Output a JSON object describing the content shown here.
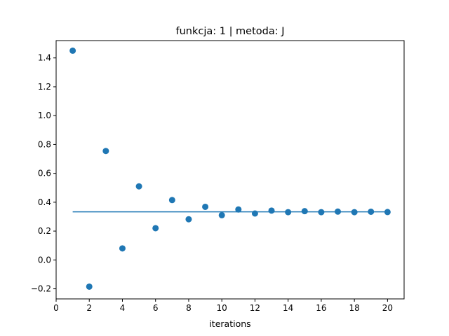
{
  "chart_data": {
    "type": "scatter",
    "title": "funkcja: 1 | metoda: J",
    "xlabel": "iterations",
    "ylabel": "",
    "xlim": [
      0,
      21
    ],
    "ylim": [
      -0.27,
      1.52
    ],
    "xticks": [
      0,
      2,
      4,
      6,
      8,
      10,
      12,
      14,
      16,
      18,
      20
    ],
    "yticks": [
      -0.2,
      0.0,
      0.2,
      0.4,
      0.6,
      0.8,
      1.0,
      1.2,
      1.4
    ],
    "ytick_labels": [
      "−0.2",
      "0.0",
      "0.2",
      "0.4",
      "0.6",
      "0.8",
      "1.0",
      "1.2",
      "1.4"
    ],
    "grid": false,
    "series": [
      {
        "kind": "scatter",
        "color": "#1f77b4",
        "x": [
          1,
          2,
          3,
          4,
          5,
          6,
          7,
          8,
          9,
          10,
          11,
          12,
          13,
          14,
          15,
          16,
          17,
          18,
          19,
          20
        ],
        "y": [
          1.45,
          -0.185,
          0.755,
          0.08,
          0.51,
          0.22,
          0.415,
          0.282,
          0.368,
          0.31,
          0.35,
          0.322,
          0.342,
          0.331,
          0.338,
          0.331,
          0.335,
          0.331,
          0.334,
          0.332
        ]
      },
      {
        "kind": "line",
        "color": "#1f77b4",
        "x": [
          1,
          20
        ],
        "y": [
          0.3333,
          0.3333
        ]
      }
    ]
  }
}
